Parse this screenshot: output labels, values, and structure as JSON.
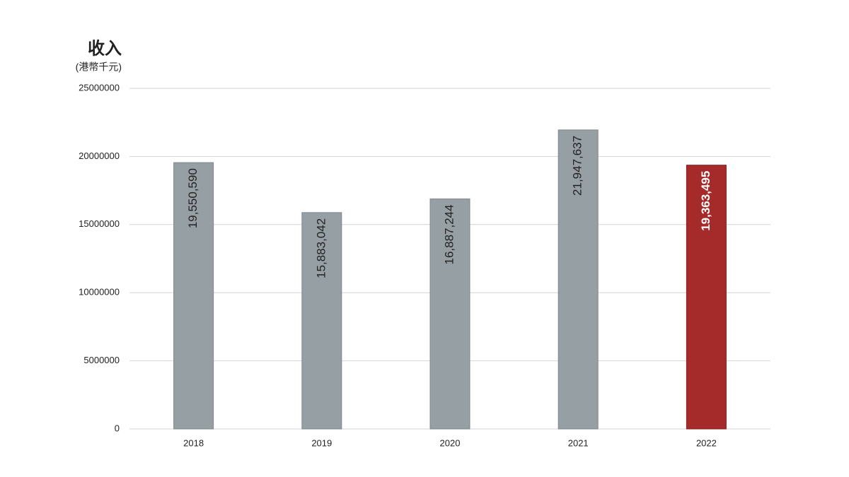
{
  "chart_data": {
    "type": "bar",
    "title": "收入",
    "subtitle": "(港幣千元)",
    "categories": [
      "2018",
      "2019",
      "2020",
      "2021",
      "2022"
    ],
    "values": [
      19550590,
      15883042,
      16887244,
      21947637,
      19363495
    ],
    "value_labels": [
      "19,550,590",
      "15,883,042",
      "16,887,244",
      "21,947,637",
      "19,363,495"
    ],
    "colors": [
      "#969fa4",
      "#969fa4",
      "#969fa4",
      "#969fa4",
      "#a52a2a"
    ],
    "value_label_colors": [
      "#222222",
      "#222222",
      "#222222",
      "#222222",
      "#ffffff"
    ],
    "value_label_weights": [
      "normal",
      "normal",
      "normal",
      "normal",
      "bold"
    ],
    "ylim": [
      0,
      25000000
    ],
    "yticks": [
      0,
      5000000,
      10000000,
      15000000,
      20000000,
      25000000
    ],
    "grid": true
  }
}
